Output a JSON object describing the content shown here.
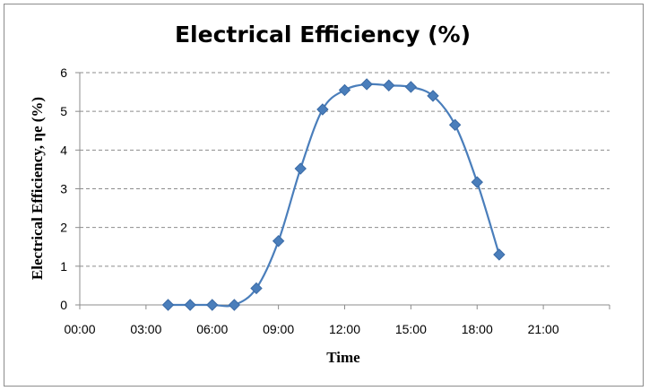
{
  "chart_data": {
    "type": "line",
    "title": "Electrical Efficiency (%)",
    "xlabel": "Time",
    "ylabel": "Electrical Efficiency, ηe (%)",
    "x_tick_labels": [
      "00:00",
      "03:00",
      "06:00",
      "09:00",
      "12:00",
      "15:00",
      "18:00",
      "21:00"
    ],
    "y_tick_labels": [
      "0",
      "1",
      "2",
      "3",
      "4",
      "5",
      "6"
    ],
    "xlim": [
      "00:00",
      "24:00"
    ],
    "ylim": [
      0,
      6
    ],
    "grid": "horizontal dashed",
    "series": [
      {
        "color": "#4a7ebb",
        "marker": "diamond",
        "points": [
          {
            "x": "04:00",
            "y": 0.0
          },
          {
            "x": "05:00",
            "y": 0.0
          },
          {
            "x": "06:00",
            "y": 0.0
          },
          {
            "x": "07:00",
            "y": 0.0
          },
          {
            "x": "08:00",
            "y": 0.43
          },
          {
            "x": "09:00",
            "y": 1.65
          },
          {
            "x": "10:00",
            "y": 3.52
          },
          {
            "x": "11:00",
            "y": 5.05
          },
          {
            "x": "12:00",
            "y": 5.55
          },
          {
            "x": "13:00",
            "y": 5.7
          },
          {
            "x": "14:00",
            "y": 5.67
          },
          {
            "x": "15:00",
            "y": 5.63
          },
          {
            "x": "16:00",
            "y": 5.4
          },
          {
            "x": "17:00",
            "y": 4.65
          },
          {
            "x": "18:00",
            "y": 3.17
          },
          {
            "x": "19:00",
            "y": 1.3
          }
        ]
      }
    ]
  }
}
